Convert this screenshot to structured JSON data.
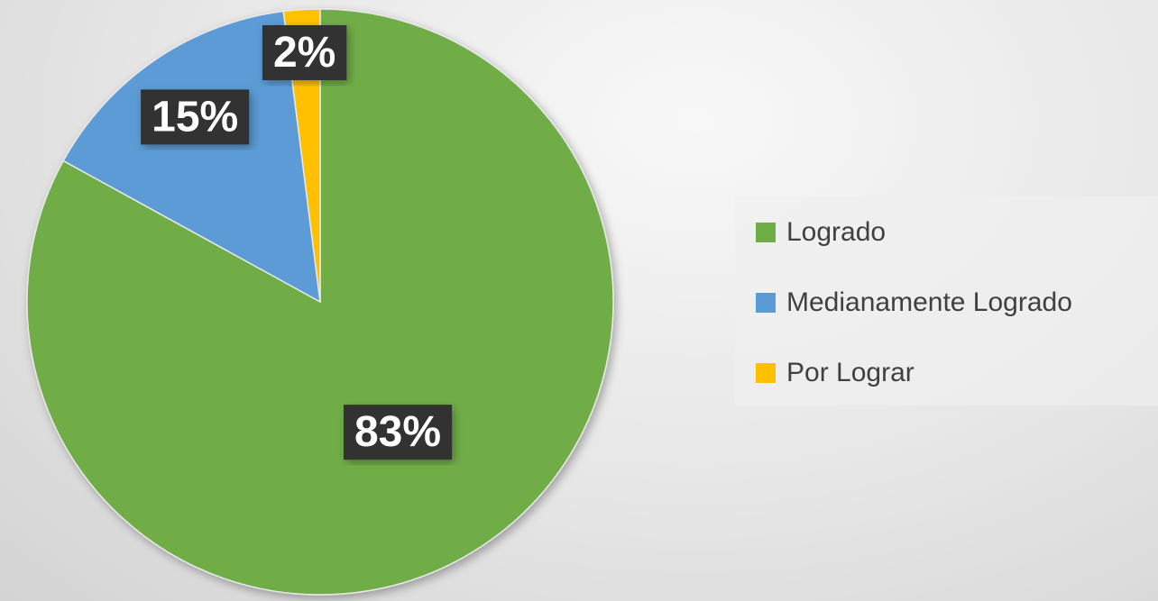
{
  "chart_data": {
    "type": "pie",
    "categories": [
      "Logrado",
      "Medianamente Logrado",
      "Por Lograr"
    ],
    "values": [
      83,
      15,
      2
    ],
    "value_labels": [
      "83%",
      "15%",
      "2%"
    ],
    "colors": [
      "#70ad47",
      "#5b9bd5",
      "#ffc000"
    ],
    "legend": "right"
  }
}
